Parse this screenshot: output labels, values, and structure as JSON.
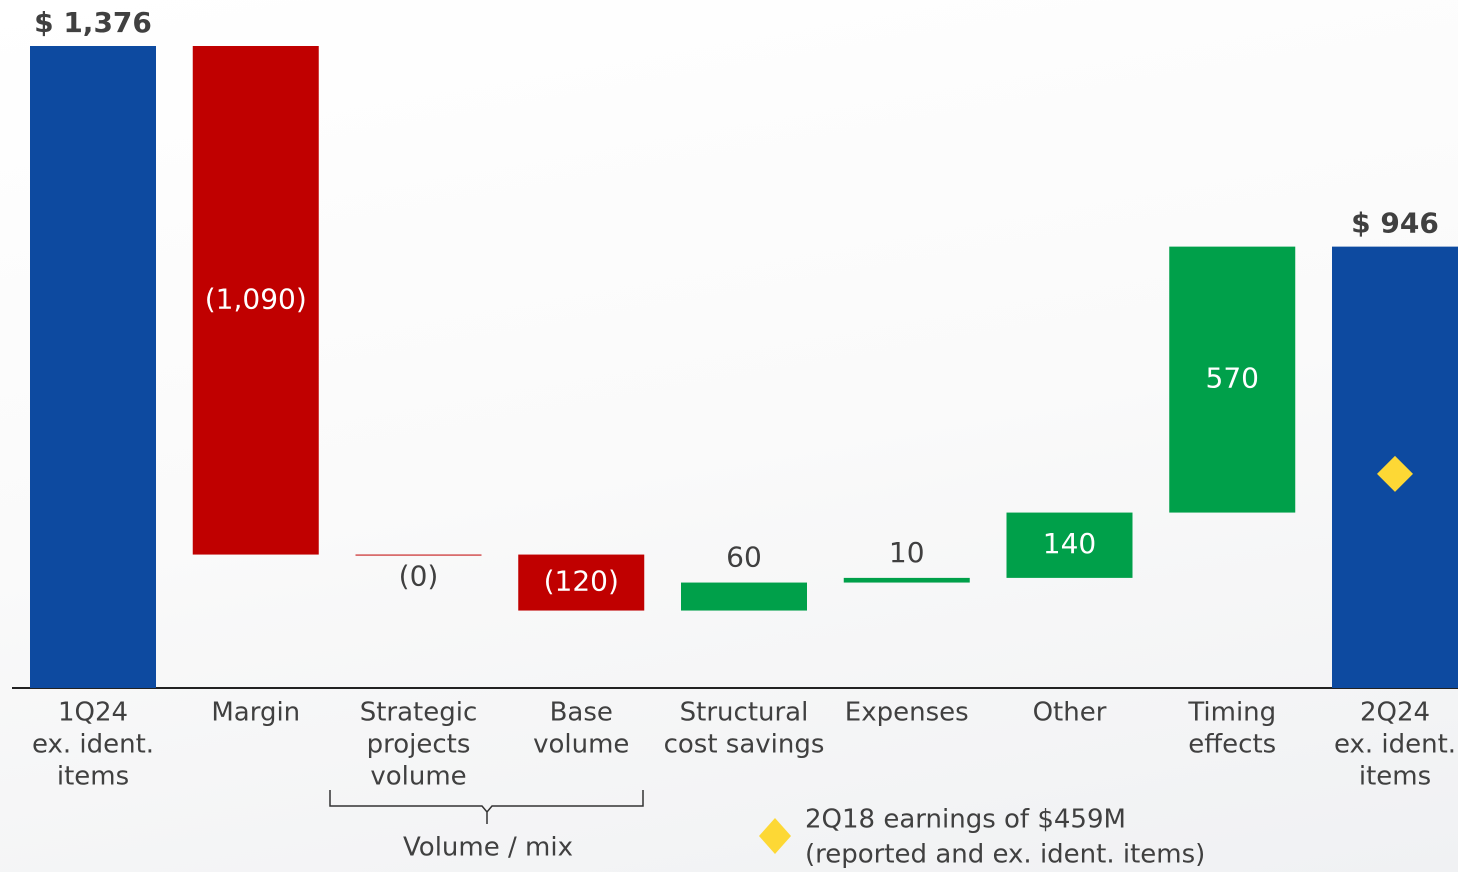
{
  "chart_data": {
    "type": "waterfall",
    "categories": [
      [
        "1Q24",
        "ex. ident.",
        "items"
      ],
      [
        "Margin"
      ],
      [
        "Strategic",
        "projects",
        "volume"
      ],
      [
        "Base",
        "volume"
      ],
      [
        "Structural",
        "cost savings"
      ],
      [
        "Expenses"
      ],
      [
        "Other"
      ],
      [
        "Timing",
        "effects"
      ],
      [
        "2Q24",
        "ex. ident.",
        "items"
      ]
    ],
    "values": [
      1376,
      -1090,
      0,
      -120,
      60,
      10,
      140,
      570,
      946
    ],
    "value_labels": [
      "$ 1,376",
      "(1,090)",
      "(0)",
      "(120)",
      "60",
      "10",
      "140",
      "570",
      "$ 946"
    ],
    "bar_kinds": [
      "total",
      "decrease",
      "decrease",
      "decrease",
      "increase",
      "increase",
      "increase",
      "increase",
      "total"
    ],
    "colors": {
      "total": "#0d4aa0",
      "decrease": "#c00000",
      "increase": "#00a04a"
    },
    "group_label": "Volume / mix",
    "marker": {
      "value": 459,
      "color": "#fdd835",
      "label": [
        "2Q18 earnings of $459M",
        "(reported and ex. ident. items)"
      ]
    }
  }
}
